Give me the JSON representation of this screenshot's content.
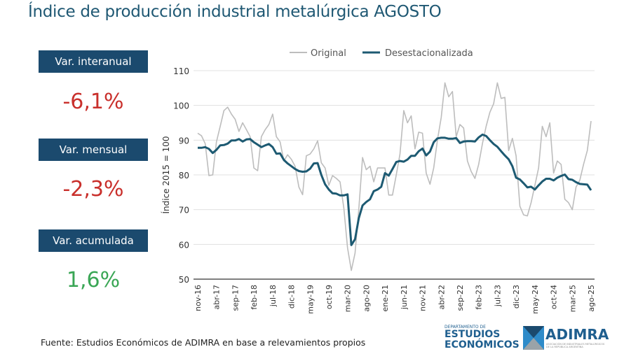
{
  "title": "Índice de producción industrial metalúrgica AGOSTO",
  "kpis": [
    {
      "label": "Var. interanual",
      "value": "-6,1%",
      "color": "#c9302c"
    },
    {
      "label": "Var. mensual",
      "value": "-2,3%",
      "color": "#c9302c"
    },
    {
      "label": "Var. acumulada",
      "value": "1,6%",
      "color": "#3aa655"
    }
  ],
  "source": "Fuente: Estudios Económicos de ADIMRA en base a relevamientos propios",
  "logos": {
    "ee_small": "DEPARTAMENTO DE",
    "ee_line1": "ESTUDIOS",
    "ee_line2": "ECONÓMICOS",
    "adimra": "ADIMRA",
    "adimra_sub": "ASOCIACIÓN DE INDUSTRIALES METALÚRGICOS DE LA REPÚBLICA ARGENTINA"
  },
  "chart_data": {
    "type": "line",
    "title": "",
    "xlabel": "",
    "ylabel": "Índice 2015 = 100",
    "ylim": [
      50,
      110
    ],
    "yticks": [
      50,
      60,
      70,
      80,
      90,
      100,
      110
    ],
    "grid": true,
    "legend_position": "top",
    "start": "nov-16",
    "end": "ago-25",
    "xtick_labels": [
      "nov-16",
      "abr-17",
      "sep-17",
      "feb-18",
      "jul-18",
      "dic-18",
      "may-19",
      "oct-19",
      "mar-20",
      "ago-20",
      "ene-21",
      "jun-21",
      "nov-21",
      "abr-22",
      "sep-22",
      "feb-23",
      "jul-23",
      "dic-23",
      "may-24",
      "oct-24",
      "mar-25",
      "ago-25"
    ],
    "series": [
      {
        "name": "Original",
        "color": "#bdbdbd",
        "values": [
          92,
          91.3,
          89,
          79.8,
          80,
          89.5,
          94,
          98.5,
          99.5,
          97.5,
          96,
          92.5,
          95,
          93,
          91,
          82,
          81.2,
          91,
          93,
          94.5,
          97.5,
          91,
          89.5,
          84,
          85.8,
          84.5,
          82.5,
          76.5,
          74.3,
          85.5,
          86,
          87.5,
          89.8,
          83.5,
          82,
          77,
          79.8,
          79,
          78,
          70.5,
          59,
          52.5,
          57.5,
          70,
          85,
          81.5,
          82.5,
          78,
          82,
          82,
          82,
          74.2,
          74.2,
          80,
          86,
          98.5,
          95,
          97,
          87.5,
          92.3,
          92,
          80.5,
          77.3,
          82,
          90,
          96.5,
          106.5,
          102.5,
          104,
          91,
          94.5,
          93.5,
          84,
          81,
          79,
          83,
          89,
          94,
          98,
          100.5,
          106.5,
          102,
          102.3,
          87,
          90.5,
          85.5,
          71,
          68.5,
          68.2,
          72,
          77,
          82,
          94,
          91,
          95,
          80.5,
          84,
          83,
          73,
          72,
          70,
          76.5,
          78.5,
          83,
          87,
          95.5
        ]
      },
      {
        "name": "Desestacionalizada",
        "color": "#1d5a72",
        "values": [
          87.8,
          87.8,
          88,
          87.5,
          86.3,
          87.2,
          88.5,
          88.6,
          89,
          89.9,
          89.9,
          90.3,
          89.6,
          90.2,
          90.3,
          89.4,
          88.7,
          88,
          88.5,
          88.9,
          88,
          86.1,
          86.2,
          84.3,
          83.3,
          82.5,
          81.7,
          81.1,
          80.9,
          81,
          81.8,
          83.3,
          83.4,
          80,
          77.3,
          75.8,
          74.7,
          74.6,
          74.1,
          74.1,
          74.4,
          59.8,
          61.5,
          67.5,
          71.2,
          72.2,
          73,
          75.3,
          75.8,
          76.6,
          80.5,
          79.8,
          81.7,
          83.7,
          84,
          83.8,
          84.4,
          85.5,
          85.5,
          86.8,
          87.6,
          85.6,
          86.7,
          89.4,
          90.5,
          90.7,
          90.7,
          90.4,
          90.4,
          90.6,
          89.2,
          89.6,
          89.7,
          89.7,
          89.6,
          90.8,
          91.6,
          91.2,
          90,
          88.9,
          88.1,
          86.8,
          85.6,
          84.5,
          82.5,
          79.2,
          78.7,
          77.6,
          76.4,
          76.6,
          75.8,
          77,
          78.1,
          78.9,
          78.9,
          78.4,
          79.2,
          79.7,
          80.1,
          78.8,
          78.6,
          77.9,
          77.4,
          77.3,
          77.2,
          75.6
        ]
      }
    ]
  }
}
